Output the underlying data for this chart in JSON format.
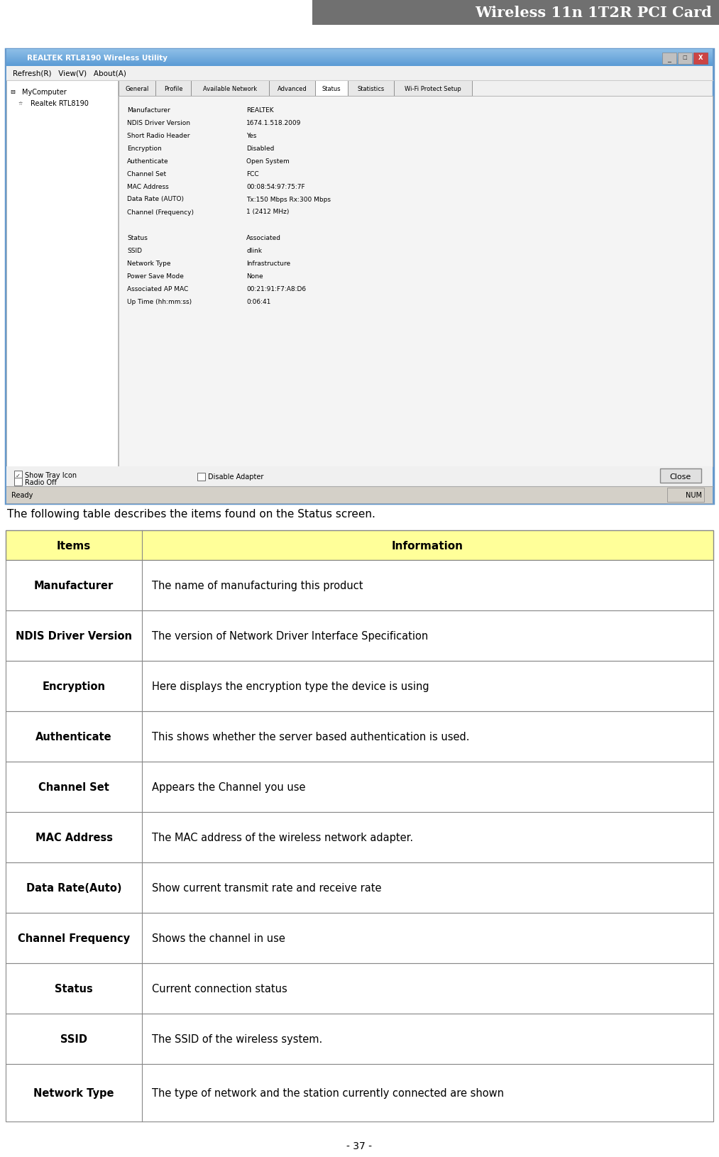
{
  "title": "Wireless 11n 1T2R PCI Card",
  "title_color": "#ffffff",
  "page_bg": "#ffffff",
  "intro_text": "The following table describes the items found on the Status screen.",
  "table_header": [
    "Items",
    "Information"
  ],
  "header_bg": "#ffff99",
  "table_rows": [
    [
      "Manufacturer",
      "The name of manufacturing this product"
    ],
    [
      "NDIS Driver Version",
      "The version of Network Driver Interface Specification"
    ],
    [
      "Encryption",
      "Here displays the encryption type the device is using"
    ],
    [
      "Authenticate",
      "This shows whether the server based authentication is used."
    ],
    [
      "Channel Set",
      "Appears the Channel you use"
    ],
    [
      "MAC Address",
      "The MAC address of the wireless network adapter."
    ],
    [
      "Data Rate(Auto)",
      "Show current transmit rate and receive rate"
    ],
    [
      "Channel Frequency",
      "Shows the channel in use"
    ],
    [
      "Status",
      "Current connection status"
    ],
    [
      "SSID",
      "The SSID of the wireless system."
    ],
    [
      "Network Type",
      "The type of network and the station currently connected are shown"
    ]
  ],
  "footer_text": "- 37 -",
  "ss_title_bar": "REALTEK RTL8190 Wireless Utility",
  "ss_menu": "Refresh(R)   View(V)   About(A)",
  "ss_tabs": [
    "General",
    "Profile",
    "Available Network",
    "Advanced",
    "Status",
    "Statistics",
    "Wi-Fi Protect Setup"
  ],
  "ss_active_tab": "Status",
  "ss_tree_items": [
    "MyComputer",
    "Realtek RTL8190"
  ],
  "ss_fields": [
    [
      "Manufacturer",
      "REALTEK"
    ],
    [
      "NDIS Driver Version",
      "1674.1.518.2009"
    ],
    [
      "Short Radio Header",
      "Yes"
    ],
    [
      "Encryption",
      "Disabled"
    ],
    [
      "Authenticate",
      "Open System"
    ],
    [
      "Channel Set",
      "FCC"
    ],
    [
      "MAC Address",
      "00:08:54:97:75:7F"
    ],
    [
      "Data Rate (AUTO)",
      "Tx:150 Mbps Rx:300 Mbps"
    ],
    [
      "Channel (Frequency)",
      "1 (2412 MHz)"
    ],
    [
      "",
      ""
    ],
    [
      "Status",
      "Associated"
    ],
    [
      "SSID",
      "dlink"
    ],
    [
      "Network Type",
      "Infrastructure"
    ],
    [
      "Power Save Mode",
      "None"
    ],
    [
      "Associated AP MAC",
      "00:21:91:F7:A8:D6"
    ],
    [
      "Up Time (hh:mm:ss)",
      "0:06:41"
    ]
  ],
  "tab_widths": [
    52,
    50,
    110,
    65,
    46,
    65,
    110
  ]
}
